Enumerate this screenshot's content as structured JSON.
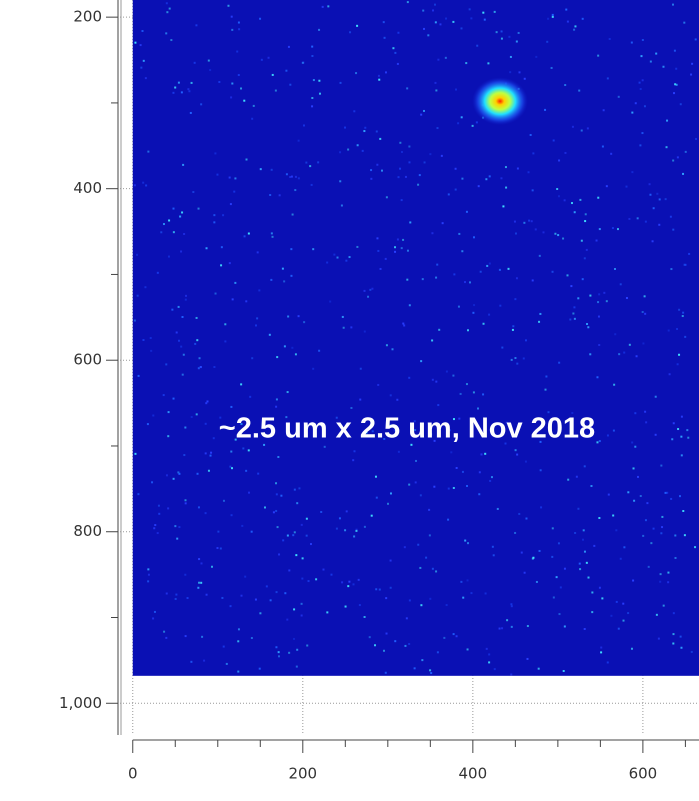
{
  "chart_data": {
    "type": "heatmap",
    "annotation": "~2.5 um x 2.5 um, Nov 2018",
    "xlim": [
      -15,
      666
    ],
    "ylim": [
      180,
      1037
    ],
    "y_axis_inverted": true,
    "xticks": [
      0,
      200,
      400,
      600
    ],
    "yticks": [
      200,
      400,
      600,
      800,
      {
        "value": 1000,
        "label": "1,000"
      }
    ],
    "x_minor_ticks": [
      50,
      100,
      150,
      250,
      300,
      350,
      450,
      500,
      550,
      650
    ],
    "y_minor_ticks": [
      300,
      500,
      700,
      900
    ],
    "grid": true,
    "image_extent": {
      "x": [
        0,
        666
      ],
      "y": [
        180,
        968
      ]
    },
    "color": "#0a10b4",
    "spot": {
      "x": 432,
      "y": 298
    }
  }
}
